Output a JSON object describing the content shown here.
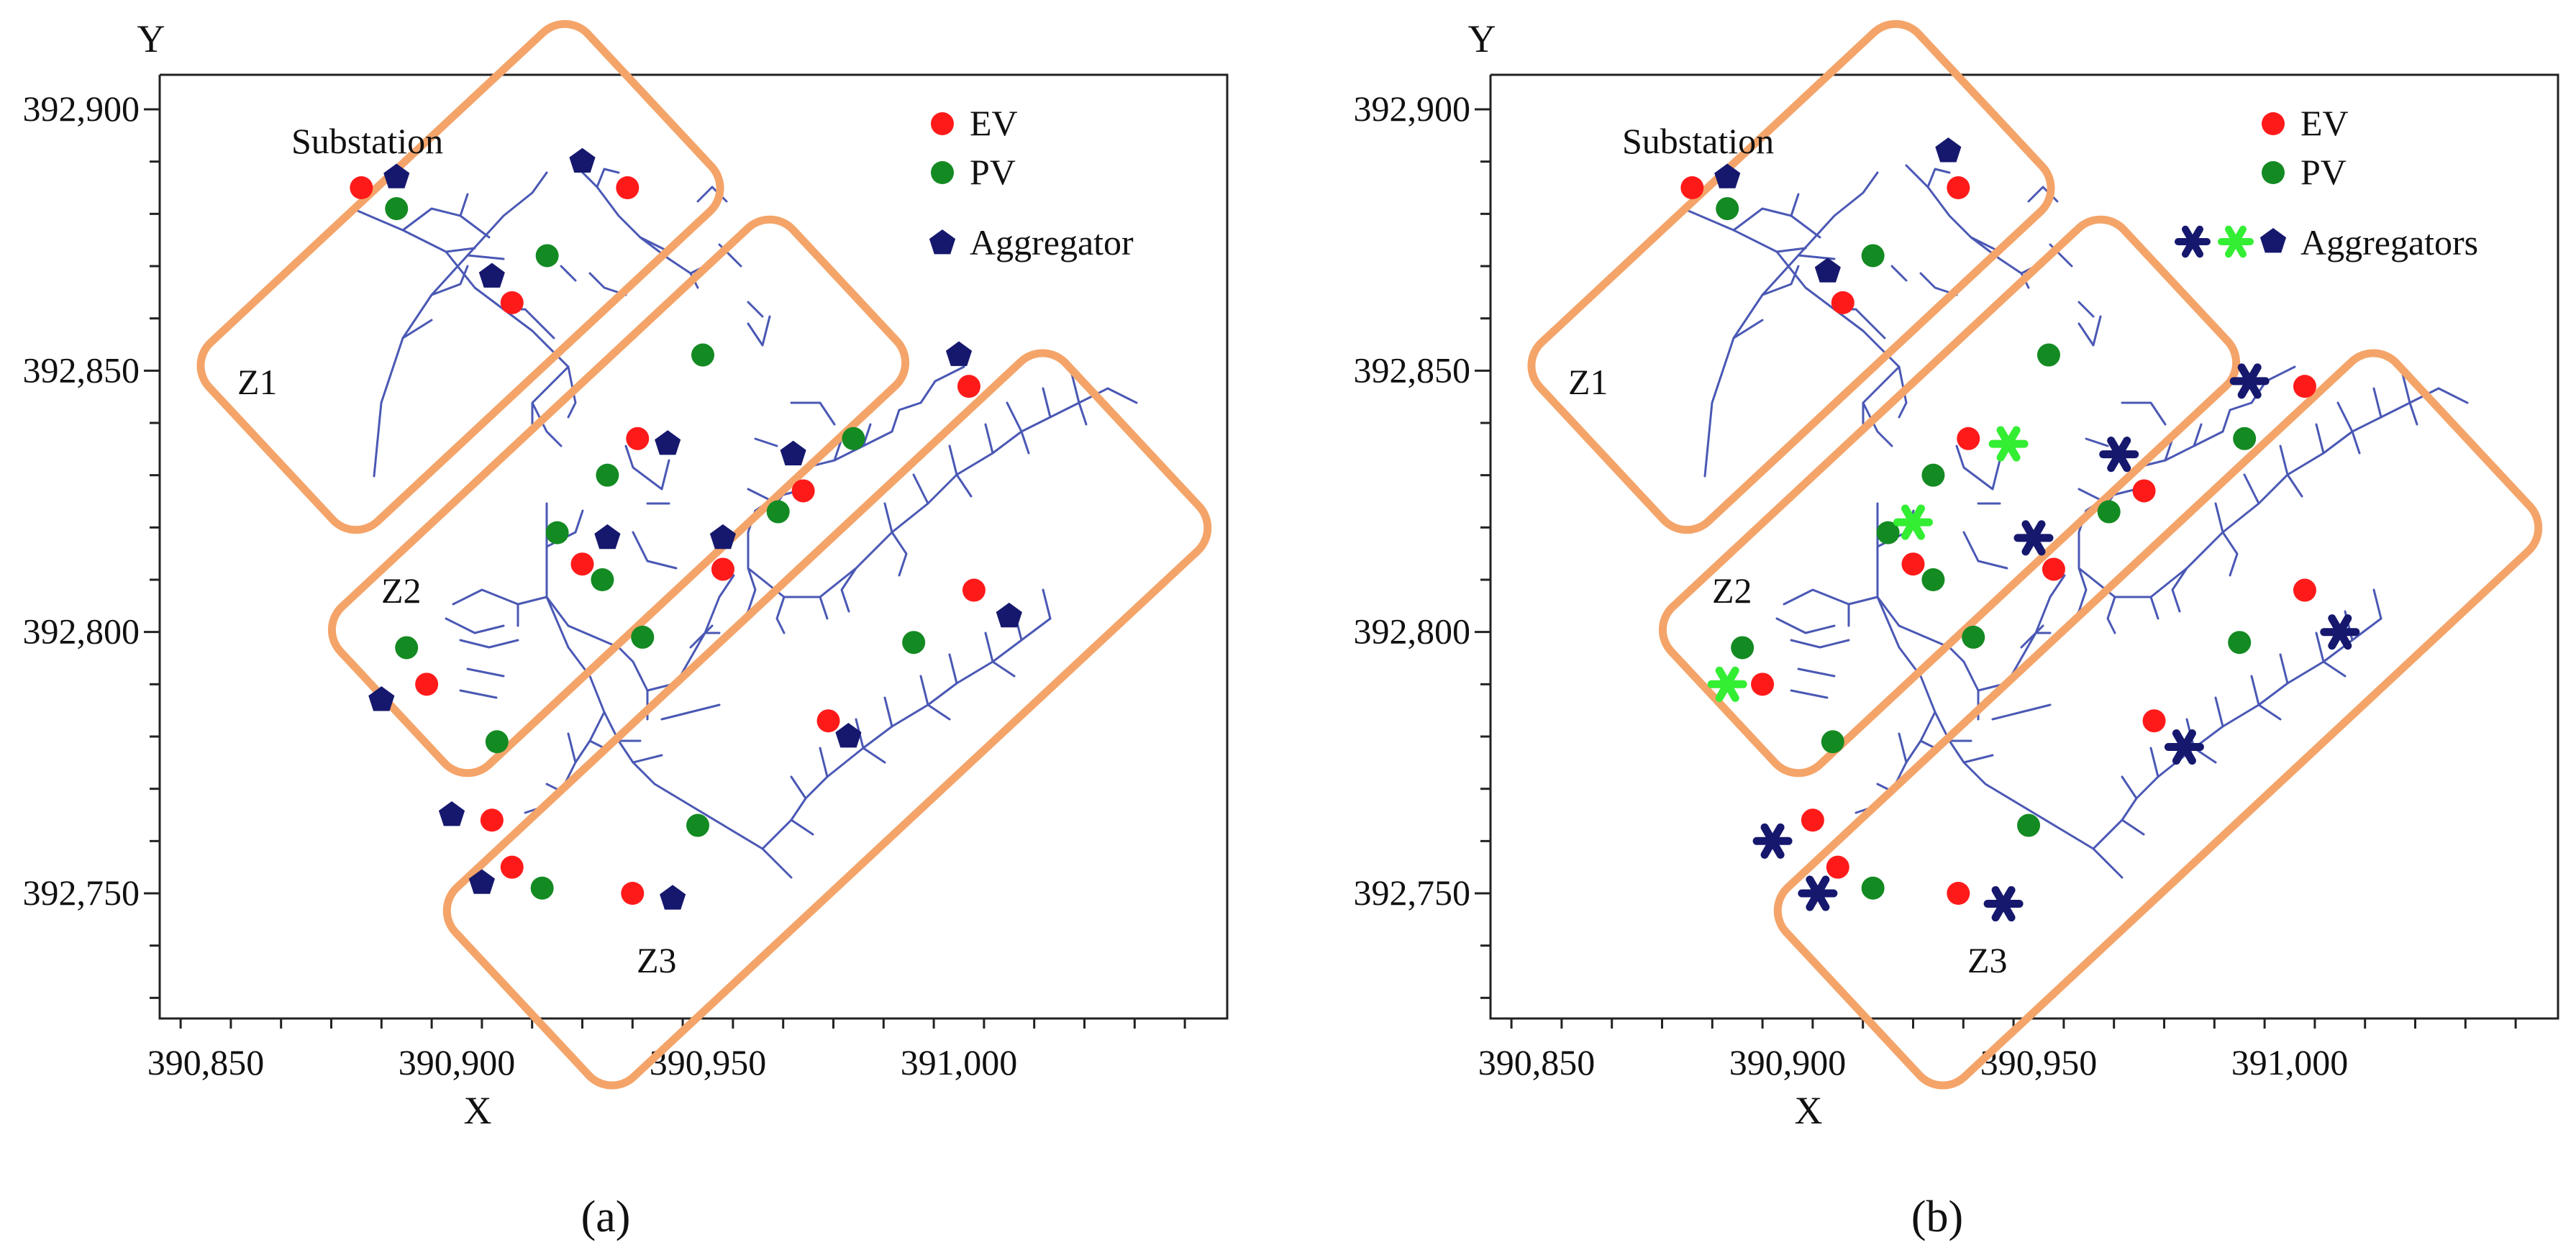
{
  "panels": [
    {
      "id": "a",
      "caption": "(a)",
      "caption_letter": "a",
      "x_axis_label": "X",
      "y_axis_label": "Y",
      "x_ticks": [
        "390,850",
        "390,900",
        "390,950",
        "391,000"
      ],
      "y_ticks": [
        "392,900",
        "392,850",
        "392,800",
        "392,750"
      ],
      "substation_label": "Substation",
      "zones": [
        "Z1",
        "Z2",
        "Z3"
      ],
      "legend": [
        {
          "label": "EV",
          "marker": "red-circle"
        },
        {
          "label": "PV",
          "marker": "green-circle"
        },
        {
          "label": "Aggregator",
          "marker": "navy-pentagon"
        }
      ]
    },
    {
      "id": "b",
      "caption": "(b)",
      "caption_letter": "b",
      "x_axis_label": "X",
      "y_axis_label": "Y",
      "x_ticks": [
        "390,850",
        "390,900",
        "390,950",
        "391,000"
      ],
      "y_ticks": [
        "392,900",
        "392,850",
        "392,800",
        "392,750"
      ],
      "substation_label": "Substation",
      "zones": [
        "Z1",
        "Z2",
        "Z3"
      ],
      "legend": [
        {
          "label": "EV",
          "marker": "red-circle"
        },
        {
          "label": "PV",
          "marker": "green-circle"
        },
        {
          "label": "Aggregators",
          "marker": "navy-star-green-star-navy-pentagon"
        }
      ]
    }
  ],
  "colors": {
    "ev": "#ff1a1a",
    "pv": "#148a22",
    "aggregator": "#16186e",
    "aggregator_alt": "#33ee33",
    "feeder": "#4a58b4",
    "zone": "#f4a469"
  },
  "markers": {
    "ev_a": [
      [
        390881,
        392885
      ],
      [
        390934,
        392885
      ],
      [
        390911,
        392863
      ],
      [
        390936,
        392837
      ],
      [
        390969,
        392827
      ],
      [
        390953,
        392812
      ],
      [
        391002,
        392847
      ],
      [
        391003,
        392808
      ],
      [
        390925,
        392813
      ],
      [
        390894,
        392790
      ],
      [
        390974,
        392783
      ],
      [
        390907,
        392764
      ],
      [
        390911,
        392755
      ],
      [
        390935,
        392750
      ]
    ],
    "pv_a": [
      [
        390888,
        392881
      ],
      [
        390918,
        392872
      ],
      [
        390949,
        392853
      ],
      [
        390930,
        392830
      ],
      [
        390979,
        392837
      ],
      [
        390964,
        392823
      ],
      [
        390920,
        392819
      ],
      [
        390929,
        392810
      ],
      [
        390890,
        392797
      ],
      [
        390937,
        392799
      ],
      [
        390991,
        392798
      ],
      [
        390908,
        392779
      ],
      [
        390948,
        392763
      ],
      [
        390917,
        392751
      ]
    ],
    "agg_pentagon_a": [
      [
        390888,
        392887
      ],
      [
        390925,
        392890
      ],
      [
        390907,
        392868
      ],
      [
        390942,
        392836
      ],
      [
        390967,
        392834
      ],
      [
        390953,
        392818
      ],
      [
        391000,
        392853
      ],
      [
        391010,
        392803
      ],
      [
        390930,
        392818
      ],
      [
        390885,
        392787
      ],
      [
        390978,
        392780
      ],
      [
        390899,
        392765
      ],
      [
        390905,
        392752
      ],
      [
        390943,
        392749
      ]
    ],
    "ev_b": [
      [
        390881,
        392885
      ],
      [
        390934,
        392885
      ],
      [
        390911,
        392863
      ],
      [
        390936,
        392837
      ],
      [
        390971,
        392827
      ],
      [
        390953,
        392812
      ],
      [
        391003,
        392847
      ],
      [
        391003,
        392808
      ],
      [
        390925,
        392813
      ],
      [
        390895,
        392790
      ],
      [
        390973,
        392783
      ],
      [
        390905,
        392764
      ],
      [
        390910,
        392755
      ],
      [
        390934,
        392750
      ]
    ],
    "pv_b": [
      [
        390888,
        392881
      ],
      [
        390917,
        392872
      ],
      [
        390952,
        392853
      ],
      [
        390929,
        392830
      ],
      [
        390991,
        392837
      ],
      [
        390964,
        392823
      ],
      [
        390920,
        392819
      ],
      [
        390929,
        392810
      ],
      [
        390891,
        392797
      ],
      [
        390937,
        392799
      ],
      [
        390990,
        392798
      ],
      [
        390909,
        392779
      ],
      [
        390948,
        392763
      ],
      [
        390917,
        392751
      ]
    ],
    "agg_pentagon_b": [
      [
        390888,
        392887
      ],
      [
        390932,
        392892
      ],
      [
        390908,
        392869
      ]
    ],
    "agg_star_navy_b": [
      [
        390992,
        392848
      ],
      [
        390966,
        392834
      ],
      [
        390949,
        392818
      ],
      [
        391010,
        392800
      ],
      [
        390979,
        392778
      ],
      [
        390897,
        392760
      ],
      [
        390906,
        392750
      ],
      [
        390943,
        392748
      ]
    ],
    "agg_star_green_b": [
      [
        390944,
        392836
      ],
      [
        390925,
        392821
      ],
      [
        390888,
        392790
      ]
    ]
  }
}
